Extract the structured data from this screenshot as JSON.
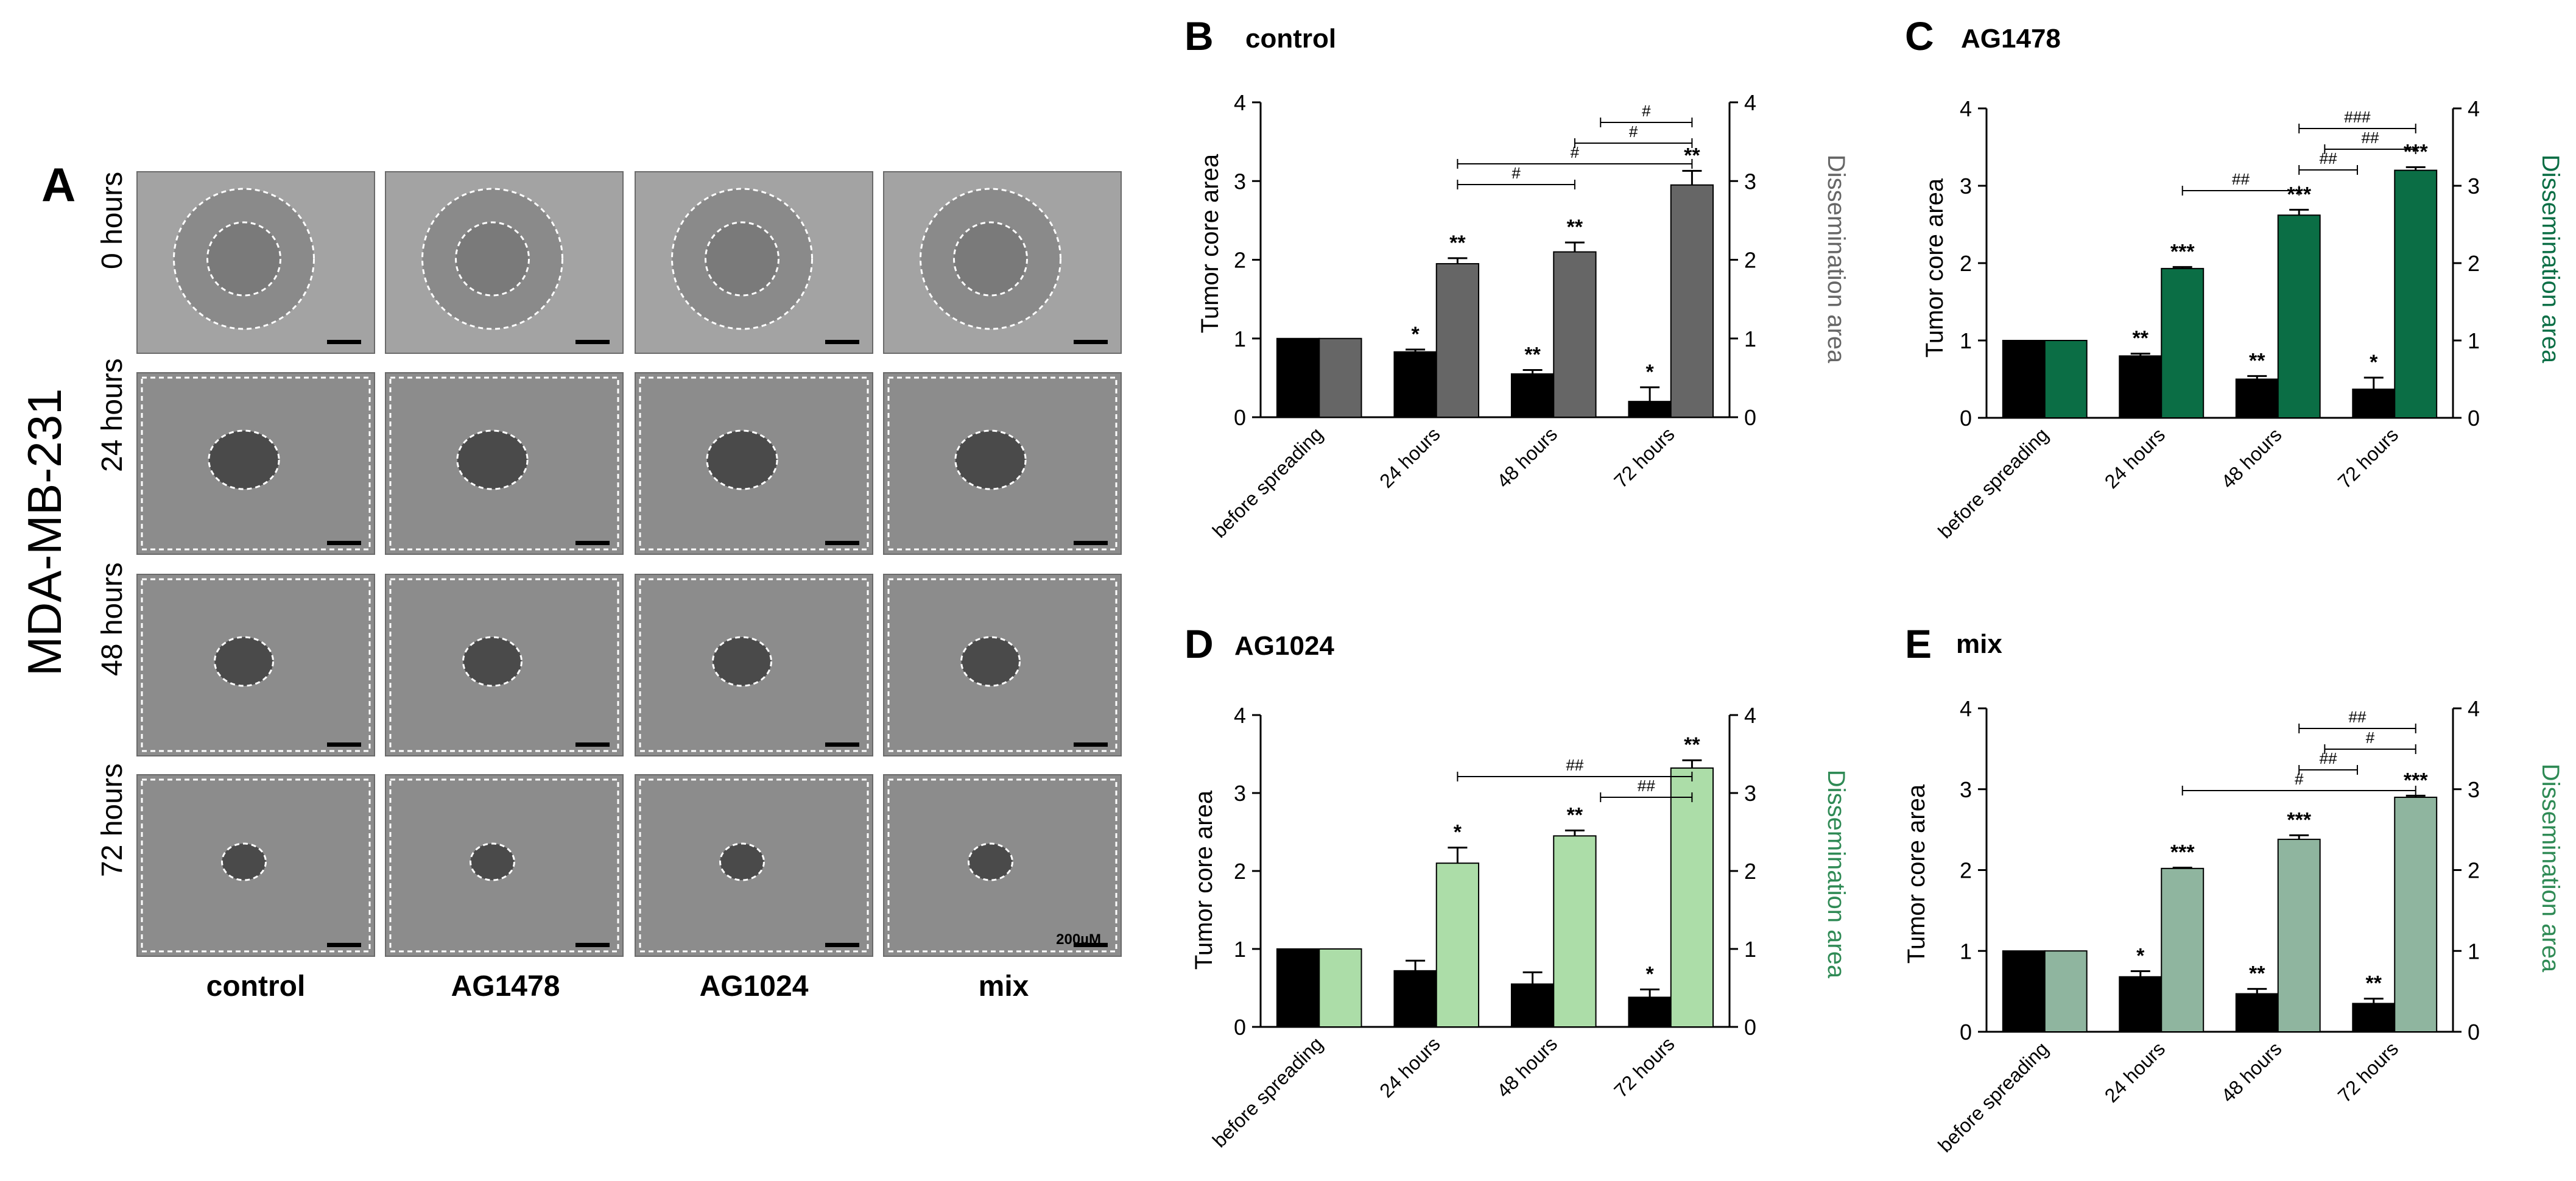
{
  "panel_a": {
    "letter": "A",
    "cell_line": "MDA-MB-231",
    "rows": [
      "0 hours",
      "24 hours",
      "48 hours",
      "72 hours"
    ],
    "columns": [
      "control",
      "AG1478",
      "AG1024",
      "mix"
    ],
    "scale_bar_label": "200µM"
  },
  "colors": {
    "black_bar": "#000000",
    "control_dissemination": "#666666",
    "ag1478_dissemination": "#0b6e45",
    "ag1024_dissemination": "#acdda8",
    "mix_dissemination": "#8fb59f",
    "ag1478_axis_text": "#0b6e45",
    "ag1024_axis_text": "#2f8a55",
    "mix_axis_text": "#2f8a55",
    "control_axis_text": "#666666"
  },
  "chart_data": [
    {
      "panel": "B",
      "type": "bar",
      "title": "control",
      "categories": [
        "before spreading",
        "24 hours",
        "48 hours",
        "72 hours"
      ],
      "ylabel": "Tumor core area",
      "y2label": "Dissemination area",
      "ylim": [
        0,
        4
      ],
      "yticks": [
        "0",
        "1",
        "2",
        "3",
        "4"
      ],
      "series": [
        {
          "values": [
            1.0,
            0.83,
            0.55,
            0.2
          ],
          "errors": [
            0,
            0.03,
            0.05,
            0.18
          ],
          "stars": [
            "",
            "*",
            "**",
            "*"
          ]
        },
        {
          "values": [
            1.0,
            1.95,
            2.1,
            2.95
          ],
          "errors": [
            0,
            0.07,
            0.12,
            0.18
          ],
          "stars": [
            "",
            "**",
            "**",
            "**"
          ]
        }
      ],
      "comparisons": [
        {
          "label": "#",
          "from": 1,
          "to": 2
        },
        {
          "label": "#",
          "from": 1,
          "to": 3
        },
        {
          "label": "#",
          "from": 2,
          "to": 3
        },
        {
          "label": "#",
          "from": 2.5,
          "to": 3
        }
      ]
    },
    {
      "panel": "C",
      "type": "bar",
      "title": "AG1478",
      "categories": [
        "before spreading",
        "24 hours",
        "48 hours",
        "72 hours"
      ],
      "ylabel": "Tumor core area",
      "y2label": "Dissemination area",
      "ylim": [
        0,
        4
      ],
      "yticks": [
        "0",
        "1",
        "2",
        "3",
        "4"
      ],
      "series": [
        {
          "values": [
            1.0,
            0.8,
            0.5,
            0.37
          ],
          "errors": [
            0,
            0.03,
            0.04,
            0.15
          ],
          "stars": [
            "",
            "**",
            "**",
            "*"
          ]
        },
        {
          "values": [
            1.0,
            1.93,
            2.62,
            3.2
          ],
          "errors": [
            0,
            0.02,
            0.07,
            0.04
          ],
          "stars": [
            "",
            "***",
            "***",
            "***"
          ]
        }
      ],
      "comparisons": [
        {
          "label": "##",
          "from": 1,
          "to": 2
        },
        {
          "label": "##",
          "from": 2,
          "to": 2.5
        },
        {
          "label": "##",
          "from": 2.5,
          "to": 3
        },
        {
          "label": "###",
          "from": 2,
          "to": 3
        }
      ]
    },
    {
      "panel": "D",
      "type": "bar",
      "title": "AG1024",
      "categories": [
        "before spreading",
        "24 hours",
        "48 hours",
        "72 hours"
      ],
      "ylabel": "Tumor core area",
      "y2label": "Dissemination area",
      "ylim": [
        0,
        4
      ],
      "yticks": [
        "0",
        "1",
        "2",
        "3",
        "4"
      ],
      "series": [
        {
          "values": [
            1.0,
            0.72,
            0.55,
            0.38
          ],
          "errors": [
            0,
            0.13,
            0.15,
            0.1
          ],
          "stars": [
            "",
            "",
            "",
            "*"
          ]
        },
        {
          "values": [
            1.0,
            2.1,
            2.45,
            3.32
          ],
          "errors": [
            0,
            0.2,
            0.07,
            0.1
          ],
          "stars": [
            "",
            "*",
            "**",
            "**"
          ]
        }
      ],
      "comparisons": [
        {
          "label": "##",
          "from": 2.5,
          "to": 3
        },
        {
          "label": "##",
          "from": 1,
          "to": 3
        }
      ]
    },
    {
      "panel": "E",
      "type": "bar",
      "title": "mix",
      "categories": [
        "before spreading",
        "24 hours",
        "48 hours",
        "72 hours"
      ],
      "ylabel": "Tumor core area",
      "y2label": "Dissemination area",
      "ylim": [
        0,
        4
      ],
      "yticks": [
        "0",
        "1",
        "2",
        "3",
        "4"
      ],
      "series": [
        {
          "values": [
            1.0,
            0.68,
            0.47,
            0.35
          ],
          "errors": [
            0,
            0.07,
            0.06,
            0.06
          ],
          "stars": [
            "",
            "*",
            "**",
            "**"
          ]
        },
        {
          "values": [
            1.0,
            2.02,
            2.38,
            2.9
          ],
          "errors": [
            0,
            0.01,
            0.05,
            0.02
          ],
          "stars": [
            "",
            "***",
            "***",
            "***"
          ]
        }
      ],
      "comparisons": [
        {
          "label": "#",
          "from": 1,
          "to": 3
        },
        {
          "label": "##",
          "from": 2,
          "to": 2.5
        },
        {
          "label": "#",
          "from": 2.5,
          "to": 3
        },
        {
          "label": "##",
          "from": 2,
          "to": 3
        }
      ]
    }
  ]
}
